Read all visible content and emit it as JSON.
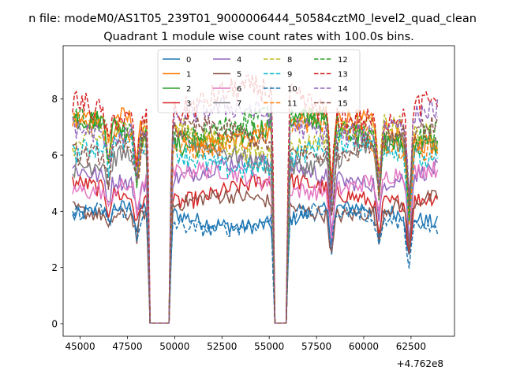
{
  "figure": {
    "suptitle": "n file: modeM0/AS1T05_239T01_9000006444_50584cztM0_level2_quad_clean",
    "title": "Quadrant 1 module wise count rates with 100.0s bins.",
    "offset_label": "+4.762e8"
  },
  "chart_data": {
    "type": "line",
    "title": "Quadrant 1 module wise count rates with 100.0s bins.",
    "xlabel": "",
    "ylabel": "",
    "x_offset": 476200000,
    "xlim": [
      44100,
      64800
    ],
    "ylim": [
      -0.45,
      9.9
    ],
    "xticks": [
      45000,
      47500,
      50000,
      52500,
      55000,
      57500,
      60000,
      62500
    ],
    "xtick_labels": [
      "45000",
      "47500",
      "50000",
      "52500",
      "55000",
      "57500",
      "60000",
      "62500"
    ],
    "yticks": [
      0,
      2,
      4,
      6,
      8
    ],
    "ytick_labels": [
      "0",
      "2",
      "4",
      "6",
      "8"
    ],
    "grid": false,
    "legend": {
      "placement": "top-center",
      "columns": 4
    },
    "segments": [
      [
        44600,
        48600
      ],
      [
        49800,
        55200
      ],
      [
        56000,
        63900
      ]
    ],
    "gaps": [
      [
        48700,
        49700
      ],
      [
        55300,
        55900
      ]
    ],
    "series": [
      {
        "name": "0",
        "color": "#1f77b4",
        "dash": "solid",
        "level": 3.8,
        "amp": 0.35
      },
      {
        "name": "1",
        "color": "#ff7f0e",
        "dash": "solid",
        "level": 6.9,
        "amp": 0.5
      },
      {
        "name": "2",
        "color": "#2ca02c",
        "dash": "solid",
        "level": 6.8,
        "amp": 0.5
      },
      {
        "name": "3",
        "color": "#d62728",
        "dash": "solid",
        "level": 4.7,
        "amp": 0.4
      },
      {
        "name": "4",
        "color": "#9467bd",
        "dash": "solid",
        "level": 5.4,
        "amp": 0.4
      },
      {
        "name": "5",
        "color": "#8c564b",
        "dash": "solid",
        "level": 4.2,
        "amp": 0.35
      },
      {
        "name": "6",
        "color": "#e377c2",
        "dash": "solid",
        "level": 5.1,
        "amp": 0.4
      },
      {
        "name": "7",
        "color": "#7f7f7f",
        "dash": "solid",
        "level": 6.0,
        "amp": 0.45
      },
      {
        "name": "8",
        "color": "#bcbd22",
        "dash": "dashed",
        "level": 6.6,
        "amp": 0.5
      },
      {
        "name": "9",
        "color": "#17becf",
        "dash": "dashed",
        "level": 6.0,
        "amp": 0.5
      },
      {
        "name": "10",
        "color": "#1f77b4",
        "dash": "dashed",
        "level": 3.7,
        "amp": 0.35
      },
      {
        "name": "11",
        "color": "#ff7f0e",
        "dash": "dashed",
        "level": 6.7,
        "amp": 0.5
      },
      {
        "name": "12",
        "color": "#2ca02c",
        "dash": "dashed",
        "level": 7.0,
        "amp": 0.5
      },
      {
        "name": "13",
        "color": "#d62728",
        "dash": "dashed",
        "level": 7.8,
        "amp": 0.6
      },
      {
        "name": "14",
        "color": "#9467bd",
        "dash": "dashed",
        "level": 7.2,
        "amp": 0.5
      },
      {
        "name": "15",
        "color": "#8c564b",
        "dash": "dashed",
        "level": 6.5,
        "amp": 0.5
      }
    ]
  }
}
